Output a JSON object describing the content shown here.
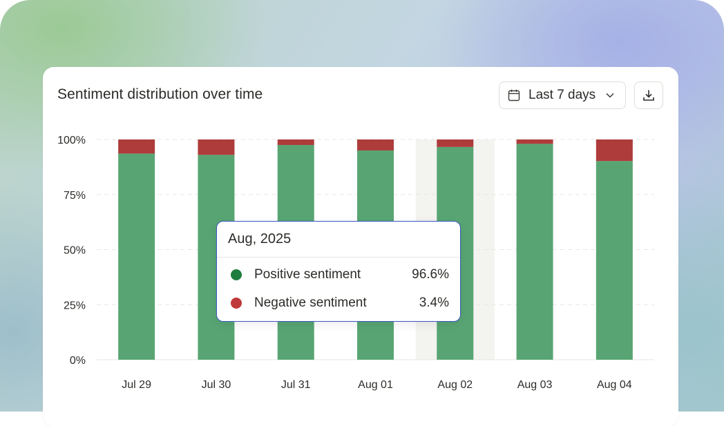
{
  "header": {
    "title": "Sentiment distribution over time",
    "range_label": "Last 7 days"
  },
  "icons": {
    "range": "calendar-icon",
    "range_toggle": "chevron-down-icon",
    "download": "download-icon"
  },
  "colors": {
    "positive": "#58a573",
    "negative": "#ad3c3b",
    "tooltip_positive_dot": "#1e7d3f",
    "tooltip_negative_dot": "#c0393b",
    "tooltip_border": "#3a56c4",
    "hover_band": "#f3f3f0"
  },
  "chart_data": {
    "type": "bar",
    "stacked": true,
    "categories": [
      "Jul 29",
      "Jul 30",
      "Jul 31",
      "Aug 01",
      "Aug 02",
      "Aug 03",
      "Aug 04"
    ],
    "series": [
      {
        "name": "Positive sentiment",
        "values": [
          93.6,
          93.0,
          97.5,
          95.0,
          96.6,
          98.0,
          90.2
        ]
      },
      {
        "name": "Negative sentiment",
        "values": [
          6.4,
          7.0,
          2.5,
          5.0,
          3.4,
          2.0,
          9.8
        ]
      }
    ],
    "ylim": [
      0,
      100
    ],
    "yticks": [
      "0%",
      "25%",
      "50%",
      "75%",
      "100%"
    ],
    "ytick_values": [
      0,
      25,
      50,
      75,
      100
    ],
    "grid": true,
    "hovered_category": "Aug 02",
    "tooltip": {
      "title": "Aug, 2025",
      "rows": [
        {
          "name": "Positive sentiment",
          "value": "96.6%"
        },
        {
          "name": "Negative sentiment",
          "value": "3.4%"
        }
      ]
    }
  }
}
